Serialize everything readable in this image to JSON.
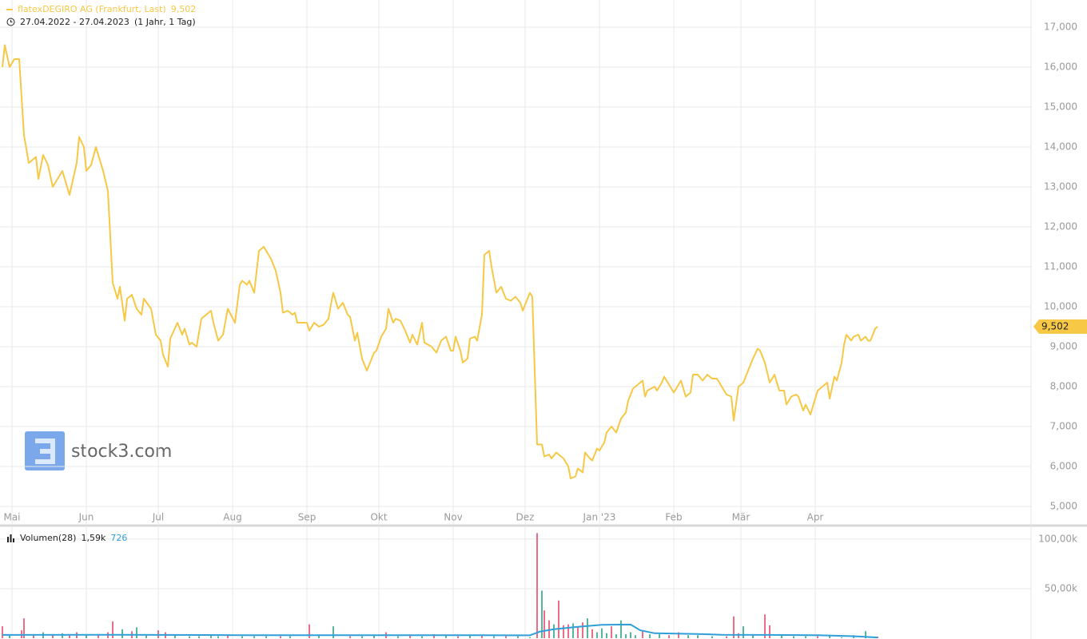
{
  "watermark": "stock3.com",
  "chart_data": [
    {
      "type": "line",
      "title": "flatexDEGIRO AG (Frankfurt, Last)",
      "subtitle": "27.04.2022 - 27.04.2023",
      "period": "(1 Jahr, 1 Tag)",
      "last": {
        "value": 9.502,
        "label": "9,502"
      },
      "color": "#f6c845",
      "grid": true,
      "xlim": [
        -1,
        429
      ],
      "ylim": [
        4.54,
        17.68
      ],
      "yticks": [
        {
          "value": 5,
          "label": "5,000"
        },
        {
          "value": 6,
          "label": "6,000"
        },
        {
          "value": 7,
          "label": "7,000"
        },
        {
          "value": 8,
          "label": "8,000"
        },
        {
          "value": 9,
          "label": "9,000"
        },
        {
          "value": 10,
          "label": "10,000"
        },
        {
          "value": 11,
          "label": "11,000"
        },
        {
          "value": 12,
          "label": "12,000"
        },
        {
          "value": 13,
          "label": "13,000"
        },
        {
          "value": 14,
          "label": "14,000"
        },
        {
          "value": 15,
          "label": "15,000"
        },
        {
          "value": 16,
          "label": "16,000"
        },
        {
          "value": 17,
          "label": "17,000"
        }
      ],
      "xticks": [
        {
          "value": 4,
          "label": "Mai"
        },
        {
          "value": 35,
          "label": "Jun"
        },
        {
          "value": 65,
          "label": "Jul"
        },
        {
          "value": 96,
          "label": "Aug"
        },
        {
          "value": 127,
          "label": "Sep"
        },
        {
          "value": 157,
          "label": "Okt"
        },
        {
          "value": 188,
          "label": "Nov"
        },
        {
          "value": 218,
          "label": "Dez"
        },
        {
          "value": 249,
          "label": "Jan '23"
        },
        {
          "value": 280,
          "label": "Feb"
        },
        {
          "value": 308,
          "label": "Mär"
        },
        {
          "value": 339,
          "label": "Apr"
        }
      ],
      "x": [
        0,
        1,
        3,
        5,
        7,
        9,
        11,
        14,
        15,
        17,
        19,
        21,
        25,
        28,
        31,
        32,
        34,
        35,
        37,
        39,
        42,
        44,
        46,
        48,
        49,
        51,
        52,
        54,
        56,
        58,
        59,
        62,
        64,
        66,
        67,
        69,
        70,
        73,
        75,
        76,
        78,
        79,
        81,
        83,
        87,
        88,
        90,
        92,
        94,
        97,
        99,
        100,
        102,
        103,
        105,
        107,
        109,
        112,
        114,
        116,
        117,
        119,
        121,
        122,
        123,
        127,
        128,
        130,
        132,
        134,
        136,
        137,
        138,
        140,
        142,
        144,
        145,
        147,
        148,
        150,
        152,
        155,
        156,
        158,
        160,
        161,
        163,
        164,
        166,
        168,
        170,
        171,
        173,
        175,
        176,
        179,
        181,
        183,
        185,
        187,
        188,
        189,
        191,
        192,
        194,
        195,
        197,
        198,
        200,
        201,
        203,
        204,
        206,
        208,
        210,
        212,
        214,
        216,
        217,
        220,
        221,
        223,
        225,
        226,
        228,
        229,
        231,
        233,
        234,
        236,
        237,
        239,
        240,
        242,
        243,
        245,
        246,
        248,
        249,
        251,
        252,
        254,
        256,
        258,
        260,
        261,
        263,
        265,
        267,
        268,
        269,
        272,
        273,
        275,
        276,
        278,
        280,
        282,
        283,
        285,
        287,
        288,
        290,
        292,
        294,
        296,
        298,
        300,
        302,
        304,
        305,
        307,
        309,
        311,
        313,
        315,
        316,
        318,
        320,
        322,
        324,
        326,
        327,
        329,
        331,
        332,
        334,
        335,
        337,
        338,
        340,
        342,
        344,
        345,
        347,
        348,
        350,
        351,
        352,
        354,
        355,
        357,
        358,
        360,
        361,
        362,
        364,
        365
      ],
      "values": [
        16.0,
        16.55,
        16.0,
        16.2,
        16.2,
        14.3,
        13.6,
        13.75,
        13.2,
        13.8,
        13.55,
        13.0,
        13.4,
        12.8,
        13.6,
        14.25,
        14.0,
        13.4,
        13.55,
        14.0,
        13.4,
        12.9,
        10.6,
        10.2,
        10.5,
        9.65,
        10.2,
        10.3,
        9.95,
        9.8,
        10.2,
        9.95,
        9.3,
        9.15,
        8.8,
        8.5,
        9.2,
        9.6,
        9.3,
        9.45,
        9.05,
        9.1,
        9.0,
        9.7,
        9.9,
        9.6,
        9.15,
        9.3,
        9.95,
        9.6,
        10.55,
        10.65,
        10.55,
        10.65,
        10.35,
        11.4,
        11.5,
        11.2,
        10.9,
        10.35,
        9.85,
        9.9,
        9.8,
        9.85,
        9.6,
        9.6,
        9.4,
        9.6,
        9.5,
        9.55,
        9.7,
        10.05,
        10.35,
        9.95,
        10.1,
        9.8,
        9.75,
        9.15,
        9.35,
        8.7,
        8.4,
        8.85,
        8.9,
        9.25,
        9.45,
        9.95,
        9.6,
        9.7,
        9.65,
        9.4,
        9.1,
        9.3,
        9.05,
        9.6,
        9.1,
        9.0,
        8.85,
        9.15,
        9.25,
        8.9,
        8.9,
        9.25,
        8.9,
        8.6,
        8.7,
        9.2,
        9.25,
        9.15,
        9.8,
        11.3,
        11.4,
        11.0,
        10.35,
        10.5,
        10.2,
        10.15,
        10.25,
        10.1,
        9.9,
        10.35,
        10.25,
        6.55,
        6.55,
        6.25,
        6.3,
        6.2,
        6.35,
        6.25,
        6.2,
        6.0,
        5.7,
        5.75,
        5.95,
        5.85,
        6.35,
        6.2,
        6.15,
        6.45,
        6.4,
        6.6,
        6.85,
        7.0,
        6.85,
        7.2,
        7.35,
        7.65,
        7.95,
        8.05,
        8.15,
        7.75,
        7.9,
        8.0,
        7.9,
        8.1,
        8.25,
        8.05,
        7.85,
        8.05,
        8.15,
        7.75,
        7.85,
        8.3,
        8.3,
        8.15,
        8.3,
        8.2,
        8.2,
        8.0,
        7.8,
        7.75,
        7.15,
        8.0,
        8.1,
        8.4,
        8.7,
        8.95,
        8.9,
        8.6,
        8.1,
        8.3,
        7.9,
        7.9,
        7.55,
        7.75,
        7.8,
        7.75,
        7.4,
        7.55,
        7.3,
        7.5,
        7.9,
        8.0,
        8.1,
        7.7,
        8.25,
        8.15,
        8.6,
        9.05,
        9.3,
        9.15,
        9.25,
        9.3,
        9.15,
        9.25,
        9.15,
        9.15,
        9.45,
        9.502
      ]
    },
    {
      "type": "bar",
      "title": "Volumen(28)",
      "current": {
        "value": 1590,
        "label": "1,59k"
      },
      "xlim": [
        -1,
        429
      ],
      "ylim": [
        0,
        112000
      ],
      "yticks": [
        {
          "value": 50000,
          "label": "50,00k"
        },
        {
          "value": 100000,
          "label": "100,00k"
        }
      ],
      "x": [
        0,
        3,
        8,
        9,
        13,
        17,
        21,
        25,
        28,
        31,
        35,
        40,
        44,
        46,
        50,
        54,
        56,
        60,
        65,
        68,
        72,
        78,
        82,
        87,
        90,
        94,
        100,
        105,
        110,
        116,
        120,
        128,
        132,
        138,
        145,
        150,
        155,
        160,
        165,
        170,
        175,
        180,
        185,
        190,
        195,
        200,
        205,
        210,
        215,
        220,
        223,
        225,
        226,
        228,
        230,
        232,
        234,
        236,
        238,
        240,
        242,
        244,
        246,
        248,
        250,
        252,
        254,
        256,
        258,
        260,
        262,
        264,
        267,
        270,
        274,
        278,
        282,
        286,
        290,
        296,
        302,
        305,
        307,
        309,
        313,
        318,
        320,
        325,
        330,
        335,
        340,
        345,
        350,
        355,
        360,
        365
      ],
      "values": [
        12000,
        3000,
        8000,
        20000,
        4000,
        6000,
        3000,
        5000,
        4000,
        6000,
        3000,
        4000,
        6000,
        17000,
        9000,
        7000,
        11000,
        3000,
        8000,
        6000,
        3000,
        2000,
        2000,
        4000,
        2000,
        3000,
        2000,
        2000,
        2000,
        2000,
        2000,
        14000,
        3000,
        12000,
        2000,
        2000,
        3000,
        6000,
        2000,
        3000,
        2000,
        4000,
        3000,
        2000,
        3000,
        3000,
        2000,
        2000,
        2000,
        1000,
        106000,
        48000,
        28000,
        18000,
        14000,
        38000,
        13000,
        14000,
        15000,
        11000,
        16000,
        20000,
        9000,
        6000,
        10000,
        5000,
        12000,
        4000,
        18000,
        4000,
        6000,
        3000,
        8000,
        4000,
        4000,
        3000,
        6000,
        3000,
        3000,
        2000,
        2000,
        22000,
        5000,
        12000,
        3000,
        24000,
        13000,
        3000,
        2000,
        2000,
        2000,
        2000,
        1000,
        3000,
        7000,
        1590
      ],
      "colors": [
        "#ea6f86",
        "#56b59a",
        "#ea6f86",
        "#ea6f86",
        "#ea6f86",
        "#56b59a",
        "#ea6f86",
        "#56b59a",
        "#ea6f86",
        "#ea6f86",
        "#56b59a",
        "#ea6f86",
        "#ea6f86",
        "#ea6f86",
        "#56b59a",
        "#ea6f86",
        "#56b59a",
        "#56b59a",
        "#ea6f86",
        "#ea6f86",
        "#56b59a",
        "#56b59a",
        "#56b59a",
        "#56b59a",
        "#56b59a",
        "#ea6f86",
        "#56b59a",
        "#56b59a",
        "#56b59a",
        "#ea6f86",
        "#56b59a",
        "#ea6f86",
        "#56b59a",
        "#56b59a",
        "#ea6f86",
        "#56b59a",
        "#56b59a",
        "#ea6f86",
        "#56b59a",
        "#ea6f86",
        "#56b59a",
        "#ea6f86",
        "#56b59a",
        "#ea6f86",
        "#56b59a",
        "#ea6f86",
        "#56b59a",
        "#ea6f86",
        "#56b59a",
        "#56b59a",
        "#ea6f86",
        "#56b59a",
        "#ea6f86",
        "#ea6f86",
        "#56b59a",
        "#ea6f86",
        "#ea6f86",
        "#ea6f86",
        "#56b59a",
        "#ea6f86",
        "#ea6f86",
        "#56b59a",
        "#ea6f86",
        "#56b59a",
        "#56b59a",
        "#56b59a",
        "#ea6f86",
        "#56b59a",
        "#56b59a",
        "#56b59a",
        "#56b59a",
        "#56b59a",
        "#ea6f86",
        "#56b59a",
        "#56b59a",
        "#ea6f86",
        "#ea6f86",
        "#56b59a",
        "#56b59a",
        "#56b59a",
        "#ea6f86",
        "#ea6f86",
        "#ea6f86",
        "#56b59a",
        "#56b59a",
        "#ea6f86",
        "#ea6f86",
        "#56b59a",
        "#56b59a",
        "#56b59a",
        "#ea6f86",
        "#56b59a",
        "#56b59a",
        "#56b59a",
        "#56b59a",
        "#ea6f86"
      ],
      "average": {
        "color": "#2f9fd8",
        "x": [
          0,
          50,
          100,
          150,
          200,
          220,
          224,
          230,
          240,
          250,
          262,
          266,
          272,
          290,
          300,
          320,
          340,
          355,
          365
        ],
        "values": [
          3300,
          3500,
          3100,
          3000,
          3000,
          2900,
          6500,
          9000,
          11500,
          13500,
          13800,
          8000,
          5000,
          4200,
          3500,
          3300,
          3000,
          2000,
          726
        ]
      }
    }
  ]
}
